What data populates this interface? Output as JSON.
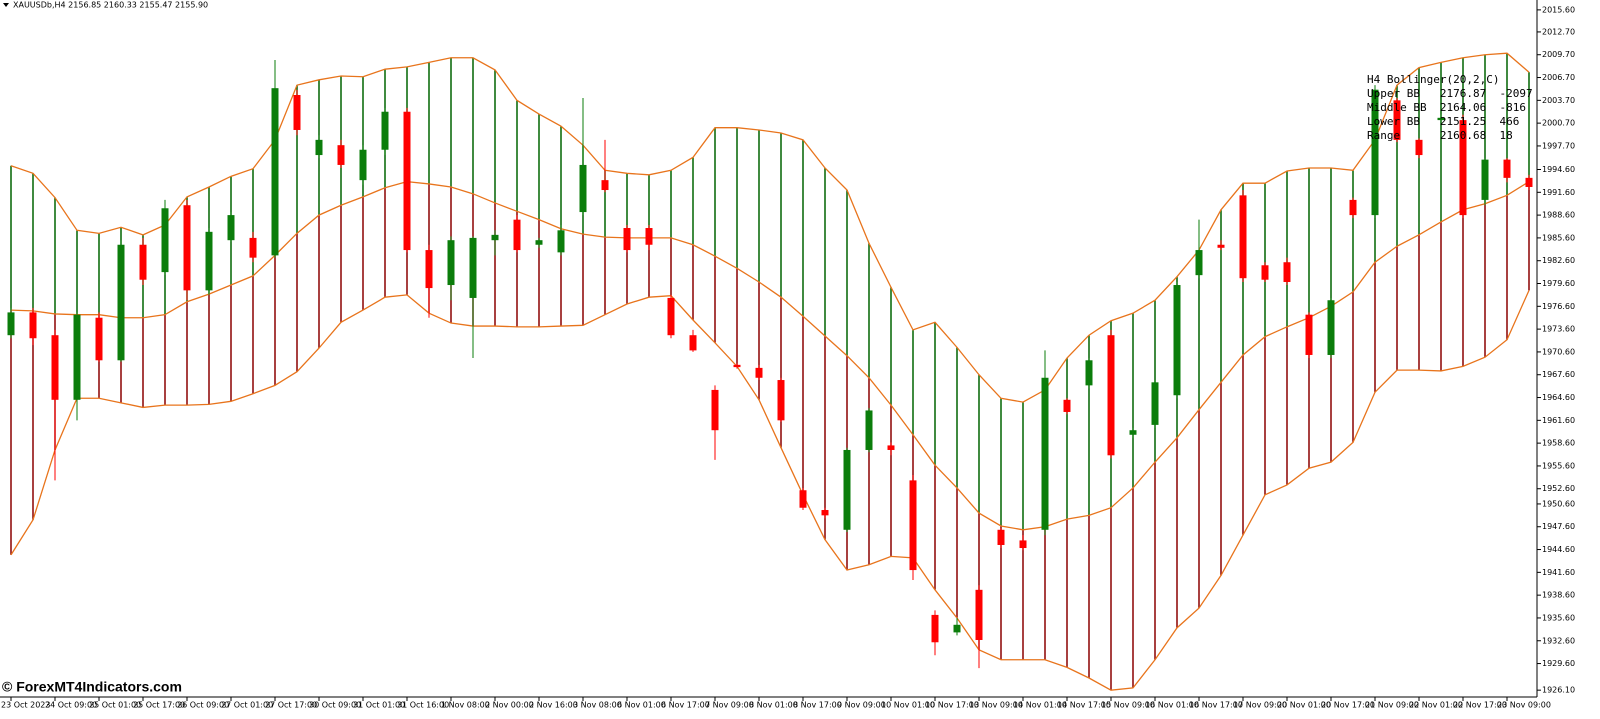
{
  "chart_data": {
    "type": "candlestick",
    "title": "XAUUSDb,H4  2156.85 2160.33 2155.47 2155.90",
    "watermark": "© ForexMT4Indicators.com",
    "categories": [
      "23 Oct 2023",
      null,
      "24 Oct 09:00",
      null,
      "25 Oct 01:00",
      null,
      "25 Oct 17:00",
      null,
      "26 Oct 09:00",
      null,
      "27 Oct 01:00",
      null,
      "27 Oct 17:00",
      null,
      "30 Oct 09:00",
      null,
      "31 Oct 01:00",
      null,
      "31 Oct 16:00",
      null,
      "1 Nov 08:00",
      null,
      "2 Nov 00:00",
      null,
      "2 Nov 16:00",
      null,
      "3 Nov 08:00",
      null,
      "6 Nov 01:00",
      null,
      "6 Nov 17:00",
      null,
      "7 Nov 09:00",
      null,
      "8 Nov 01:00",
      null,
      "8 Nov 17:00",
      null,
      "9 Nov 09:00",
      null,
      "10 Nov 01:00",
      null,
      "10 Nov 17:00",
      null,
      "13 Nov 09:00",
      null,
      "14 Nov 01:00",
      null,
      "14 Nov 17:00",
      null,
      "15 Nov 09:00",
      null,
      "16 Nov 01:00",
      null,
      "16 Nov 17:00",
      null,
      "17 Nov 09:00",
      null,
      "20 Nov 01:00",
      null,
      "20 Nov 17:00",
      null,
      "21 Nov 09:00",
      null,
      "22 Nov 01:00",
      null,
      "22 Nov 17:00",
      null,
      "23 Nov 09:00",
      null
    ],
    "open": [
      1972.8,
      1975.8,
      1972.8,
      1964.3,
      1975.1,
      1969.5,
      1984.7,
      1981.1,
      1989.9,
      1978.7,
      1985.3,
      1985.6,
      1983.3,
      2004.4,
      1996.5,
      1997.8,
      1993.2,
      1997.2,
      2002.2,
      1984.0,
      1979.4,
      1977.7,
      1985.3,
      1988.0,
      1984.7,
      1983.7,
      1989.0,
      1993.2,
      1986.9,
      1986.9,
      1977.7,
      1972.8,
      1965.6,
      1968.9,
      1968.5,
      1966.9,
      1952.4,
      1949.8,
      1947.2,
      1957.7,
      1958.3,
      1953.7,
      1936.0,
      1933.7,
      1939.3,
      1947.2,
      1945.8,
      1947.2,
      1964.3,
      1966.2,
      1972.8,
      1959.7,
      1961.0,
      1964.9,
      1980.7,
      1984.7,
      1991.2,
      1982.0,
      1982.4,
      1975.5,
      1970.2,
      1990.6,
      1988.6,
      2003.7,
      1998.5,
      2001.1,
      2001.1,
      1990.6,
      1995.9,
      1993.5
    ],
    "high": [
      1976.4,
      1976.4,
      1973.5,
      1975.8,
      1975.8,
      1985.3,
      1985.6,
      1990.6,
      1990.6,
      1986.9,
      1989.0,
      1986.4,
      2009.0,
      2005.1,
      1999.1,
      1998.5,
      1997.8,
      2002.7,
      2002.7,
      1984.7,
      1985.8,
      1985.8,
      1986.6,
      1988.6,
      1985.6,
      1987.3,
      2004.0,
      1998.5,
      1987.3,
      1987.3,
      1978.1,
      1973.5,
      1966.2,
      1969.1,
      1968.9,
      1967.2,
      1952.7,
      1950.1,
      1958.0,
      1963.2,
      1958.7,
      1954.4,
      1936.6,
      1935.6,
      1939.9,
      1947.4,
      1946.5,
      1970.8,
      1964.5,
      1969.8,
      1973.5,
      1960.6,
      1966.9,
      1979.8,
      1988.0,
      1985.3,
      1991.9,
      1982.4,
      1983.0,
      1975.8,
      1977.7,
      1990.9,
      2005.7,
      2004.0,
      1998.7,
      2001.8,
      2001.8,
      1996.1,
      1996.1,
      1993.9
    ],
    "low": [
      1972.4,
      1971.5,
      1953.7,
      1961.6,
      1969.3,
      1969.3,
      1979.4,
      1980.7,
      1977.4,
      1978.1,
      1985.1,
      1982.4,
      1983.0,
      1999.1,
      1996.1,
      1994.8,
      1992.6,
      1996.5,
      1983.7,
      1975.1,
      1977.4,
      1969.8,
      1983.3,
      1983.7,
      1984.3,
      1983.3,
      1988.6,
      1991.6,
      1983.7,
      1984.0,
      1972.4,
      1970.6,
      1956.4,
      1968.4,
      1966.9,
      1961.4,
      1949.8,
      1948.7,
      1946.9,
      1957.4,
      1957.0,
      1940.6,
      1930.7,
      1933.3,
      1929.0,
      1944.8,
      1944.5,
      1946.5,
      1962.4,
      1965.8,
      1956.6,
      1959.3,
      1960.6,
      1964.5,
      1980.3,
      1984.0,
      1979.8,
      1979.8,
      1979.4,
      1969.8,
      1969.8,
      1988.2,
      1988.2,
      1998.2,
      1996.1,
      2000.9,
      1988.2,
      1989.9,
      1992.9,
      1991.9
    ],
    "close": [
      1975.8,
      1972.4,
      1964.3,
      1975.5,
      1969.5,
      1984.7,
      1980.1,
      1989.5,
      1978.7,
      1986.4,
      1988.6,
      1983.0,
      2005.3,
      1999.8,
      1998.5,
      1995.2,
      1997.2,
      2002.2,
      1984.0,
      1979.0,
      1985.3,
      1985.6,
      1986.0,
      1984.0,
      1985.3,
      1986.6,
      1995.2,
      1991.9,
      1984.0,
      1984.7,
      1972.8,
      1970.8,
      1960.3,
      1968.6,
      1967.2,
      1961.6,
      1950.1,
      1949.1,
      1957.7,
      1962.9,
      1957.7,
      1941.9,
      1932.4,
      1934.7,
      1932.7,
      1945.2,
      1944.8,
      1967.2,
      1962.7,
      1969.5,
      1957.0,
      1960.3,
      1966.6,
      1979.4,
      1984.0,
      1984.3,
      1980.3,
      1980.1,
      1979.8,
      1970.2,
      1977.4,
      1988.6,
      2005.1,
      1998.5,
      1996.5,
      2001.4,
      1988.6,
      1995.9,
      1993.5,
      1992.3
    ],
    "upper": [
      1995.1,
      1994.1,
      1990.9,
      1986.6,
      1986.2,
      1987.0,
      1986.0,
      1987.3,
      1991.0,
      1992.3,
      1993.7,
      1994.7,
      1998.5,
      2005.7,
      2006.4,
      2006.9,
      2006.8,
      2007.8,
      2008.1,
      2008.7,
      2009.3,
      2009.3,
      2007.7,
      2003.7,
      2001.9,
      2000.3,
      1997.8,
      1994.5,
      1994.1,
      1993.9,
      1994.5,
      1996.2,
      2000.1,
      2000.1,
      1999.8,
      1999.4,
      1998.5,
      1994.8,
      1991.9,
      1984.9,
      1979.1,
      1973.5,
      1974.5,
      1971.2,
      1967.6,
      1964.5,
      1964.0,
      1965.6,
      1969.8,
      1972.8,
      1974.7,
      1975.7,
      1977.4,
      1980.5,
      1984.0,
      1989.3,
      1992.8,
      1992.8,
      1994.4,
      1994.8,
      1994.8,
      1994.5,
      1998.5,
      2005.7,
      2008.0,
      2008.7,
      2009.3,
      2009.7,
      2009.9,
      2007.4
    ],
    "middle": [
      1976.1,
      1976.0,
      1975.6,
      1975.5,
      1975.5,
      1975.1,
      1975.1,
      1975.5,
      1977.2,
      1978.2,
      1979.4,
      1980.6,
      1983.3,
      1986.2,
      1988.6,
      1989.9,
      1991.0,
      1992.2,
      1993.0,
      1992.7,
      1992.3,
      1991.4,
      1990.2,
      1989.1,
      1988.0,
      1986.8,
      1986.1,
      1985.7,
      1985.6,
      1985.6,
      1985.6,
      1984.7,
      1983.2,
      1981.6,
      1979.8,
      1977.8,
      1975.3,
      1972.7,
      1970.1,
      1967.2,
      1963.6,
      1959.7,
      1955.7,
      1952.7,
      1949.4,
      1947.7,
      1947.2,
      1947.6,
      1948.6,
      1949.1,
      1950.1,
      1952.7,
      1956.1,
      1959.3,
      1963.0,
      1966.6,
      1970.2,
      1972.6,
      1973.9,
      1975.1,
      1976.6,
      1978.5,
      1982.4,
      1984.5,
      1986.0,
      1987.7,
      1989.3,
      1990.1,
      1991.2,
      1993.0
    ],
    "lower": [
      1943.9,
      1948.5,
      1957.7,
      1964.5,
      1964.5,
      1963.9,
      1963.3,
      1963.6,
      1963.6,
      1963.7,
      1964.1,
      1965.1,
      1966.2,
      1968.0,
      1971.1,
      1974.5,
      1976.1,
      1977.8,
      1978.1,
      1975.7,
      1974.4,
      1974.0,
      1974.0,
      1973.9,
      1973.9,
      1974.0,
      1974.1,
      1975.5,
      1976.9,
      1977.8,
      1978.0,
      1974.8,
      1971.8,
      1968.7,
      1964.3,
      1958.0,
      1951.8,
      1945.9,
      1941.9,
      1942.6,
      1943.7,
      1943.5,
      1939.3,
      1935.6,
      1931.4,
      1930.1,
      1930.1,
      1930.1,
      1929.1,
      1927.7,
      1926.1,
      1926.4,
      1930.1,
      1934.3,
      1936.9,
      1941.2,
      1946.5,
      1951.8,
      1953.1,
      1955.3,
      1956.1,
      1958.7,
      1965.3,
      1968.2,
      1968.2,
      1968.1,
      1968.7,
      1969.9,
      1972.2,
      1978.7
    ],
    "bull_color": "#0b7d0b",
    "bear_color": "#ff0000",
    "upper_fill_color": "#006400",
    "lower_fill_color": "#8b0000",
    "band_line_color": "#e8741c",
    "ylim": [
      1925.2,
      2016.9
    ],
    "yticks": [
      {
        "value": 2015.6,
        "label": "2015.60"
      },
      {
        "value": 2012.7,
        "label": "2012.70"
      },
      {
        "value": 2009.7,
        "label": "2009.70"
      },
      {
        "value": 2006.7,
        "label": "2006.70"
      },
      {
        "value": 2003.7,
        "label": "2003.70"
      },
      {
        "value": 2000.7,
        "label": "2000.70"
      },
      {
        "value": 1997.7,
        "label": "1997.70"
      },
      {
        "value": 1994.6,
        "label": "1994.60"
      },
      {
        "value": 1991.6,
        "label": "1991.60"
      },
      {
        "value": 1988.6,
        "label": "1988.60"
      },
      {
        "value": 1985.6,
        "label": "1985.60"
      },
      {
        "value": 1982.6,
        "label": "1982.60"
      },
      {
        "value": 1979.6,
        "label": "1979.60"
      },
      {
        "value": 1976.6,
        "label": "1976.60"
      },
      {
        "value": 1973.6,
        "label": "1973.60"
      },
      {
        "value": 1970.6,
        "label": "1970.60"
      },
      {
        "value": 1967.6,
        "label": "1967.60"
      },
      {
        "value": 1964.6,
        "label": "1964.60"
      },
      {
        "value": 1961.6,
        "label": "1961.60"
      },
      {
        "value": 1958.6,
        "label": "1958.60"
      },
      {
        "value": 1955.6,
        "label": "1955.60"
      },
      {
        "value": 1952.6,
        "label": "1952.60"
      },
      {
        "value": 1950.6,
        "label": "1950.60"
      },
      {
        "value": 1947.6,
        "label": "1947.60"
      },
      {
        "value": 1944.6,
        "label": "1944.60"
      },
      {
        "value": 1941.6,
        "label": "1941.60"
      },
      {
        "value": 1938.6,
        "label": "1938.60"
      },
      {
        "value": 1935.6,
        "label": "1935.60"
      },
      {
        "value": 1932.6,
        "label": "1932.60"
      },
      {
        "value": 1929.6,
        "label": "1929.60"
      },
      {
        "value": 1926.1,
        "label": "1926.10"
      }
    ],
    "annotations": [
      {
        "text": "H4 Bollinger(20,2,C)",
        "color": "#f0a030"
      },
      {
        "text": "Upper BB   2176.87  -2097",
        "color": "#e01010"
      },
      {
        "text": "Middle BB  2164.06  -816",
        "color": "#e01010"
      },
      {
        "text": "Lower BB   2151.25  466",
        "color": "#22dd22"
      },
      {
        "text": "Range      2160.68  18",
        "color": "#e01010"
      }
    ]
  }
}
